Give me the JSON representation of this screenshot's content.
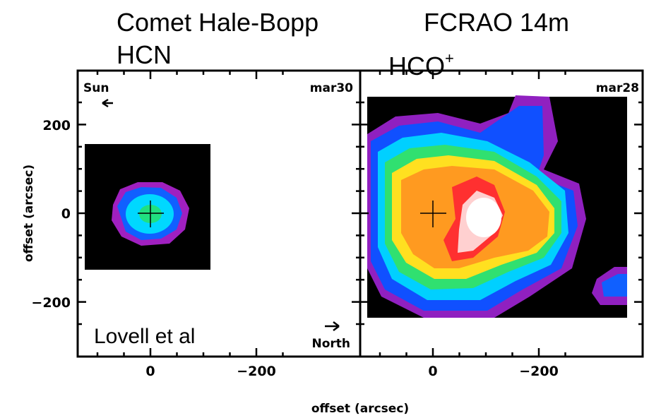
{
  "header": {
    "title_left": "Comet Hale-Bopp",
    "title_right": "FCRAO 14m"
  },
  "panels": [
    {
      "molecule": "HCN",
      "date": "mar30",
      "sun_label": "Sun",
      "credit": "Lovell et al"
    },
    {
      "molecule": "HCO",
      "molecule_sup": "+",
      "date": "mar28",
      "north_label": "North"
    }
  ],
  "axes": {
    "x_label": "offset (arcsec)",
    "y_label": "offset (arcsec)",
    "y_ticks": [
      "200",
      "0",
      "−200"
    ],
    "x_ticks": [
      "0",
      "−200"
    ]
  }
}
